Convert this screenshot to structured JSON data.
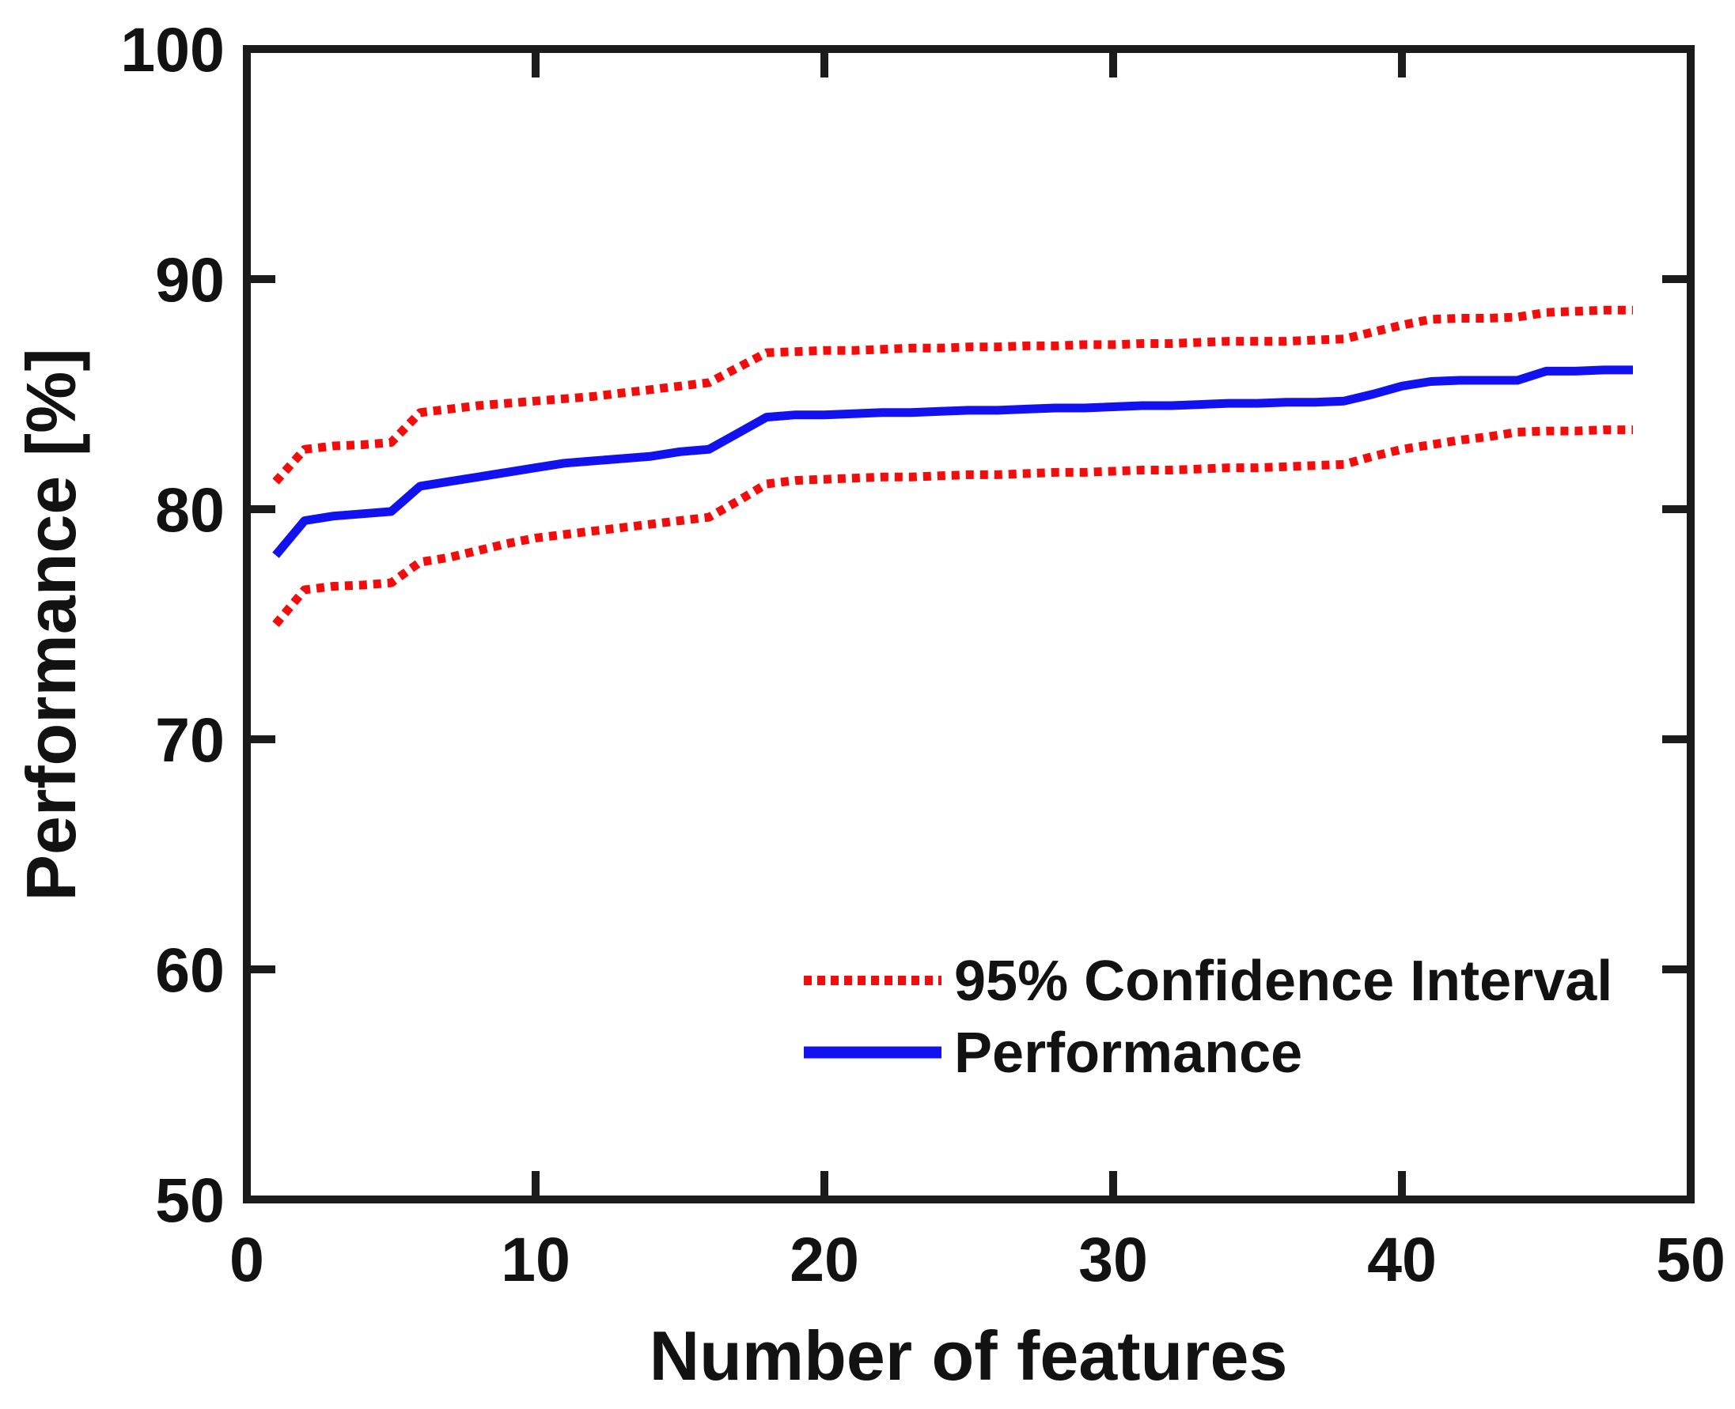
{
  "figure": {
    "background": "#ffffff",
    "axis_color": "#1b1b1b",
    "text_color": "#121212"
  },
  "chart_data": {
    "type": "line",
    "title": "",
    "xlabel": "Number of features",
    "ylabel": "Performance [%]",
    "xlim": [
      0,
      50
    ],
    "ylim": [
      50,
      100
    ],
    "x_ticks": [
      "0",
      "10",
      "20",
      "30",
      "40",
      "50"
    ],
    "x_tick_values": [
      0,
      10,
      20,
      30,
      40,
      50
    ],
    "y_ticks": [
      "50",
      "60",
      "70",
      "80",
      "90",
      "100"
    ],
    "y_tick_values": [
      50,
      60,
      70,
      80,
      90,
      100
    ],
    "grid": false,
    "box": true,
    "legend_position": "inside-lower-right",
    "x": [
      1,
      2,
      3,
      4,
      5,
      6,
      7,
      8,
      9,
      10,
      11,
      12,
      13,
      14,
      15,
      16,
      17,
      18,
      19,
      20,
      21,
      22,
      23,
      24,
      25,
      26,
      27,
      28,
      29,
      30,
      31,
      32,
      33,
      34,
      35,
      36,
      37,
      38,
      39,
      40,
      41,
      42,
      43,
      44,
      45,
      46,
      47,
      48
    ],
    "series": [
      {
        "name": "95% CI upper bound",
        "color": "#f20d0d",
        "style": "dotted",
        "values": [
          81.2,
          82.6,
          82.75,
          82.8,
          82.9,
          84.2,
          84.35,
          84.5,
          84.6,
          84.7,
          84.8,
          84.9,
          85.05,
          85.2,
          85.35,
          85.5,
          86.15,
          86.8,
          86.85,
          86.9,
          86.9,
          86.95,
          87.0,
          87.0,
          87.05,
          87.05,
          87.1,
          87.1,
          87.15,
          87.15,
          87.2,
          87.2,
          87.25,
          87.3,
          87.3,
          87.3,
          87.35,
          87.4,
          87.7,
          88.0,
          88.25,
          88.3,
          88.3,
          88.35,
          88.55,
          88.6,
          88.65,
          88.65
        ]
      },
      {
        "name": "95% CI lower bound",
        "color": "#f20d0d",
        "style": "dotted",
        "values": [
          75.0,
          76.5,
          76.65,
          76.7,
          76.8,
          77.7,
          77.9,
          78.2,
          78.5,
          78.75,
          78.9,
          79.05,
          79.2,
          79.35,
          79.5,
          79.65,
          80.35,
          81.1,
          81.25,
          81.3,
          81.35,
          81.4,
          81.4,
          81.45,
          81.5,
          81.5,
          81.55,
          81.6,
          81.6,
          81.65,
          81.7,
          81.7,
          81.75,
          81.8,
          81.8,
          81.85,
          81.9,
          81.95,
          82.3,
          82.6,
          82.8,
          83.0,
          83.15,
          83.35,
          83.4,
          83.4,
          83.45,
          83.45
        ]
      },
      {
        "name": "Performance",
        "color": "#1212f0",
        "style": "solid",
        "values": [
          78.0,
          79.5,
          79.7,
          79.8,
          79.9,
          81.0,
          81.2,
          81.4,
          81.6,
          81.8,
          82.0,
          82.1,
          82.2,
          82.3,
          82.5,
          82.6,
          83.3,
          84.0,
          84.1,
          84.1,
          84.15,
          84.2,
          84.2,
          84.25,
          84.3,
          84.3,
          84.35,
          84.4,
          84.4,
          84.45,
          84.5,
          84.5,
          84.55,
          84.6,
          84.6,
          84.65,
          84.65,
          84.7,
          85.0,
          85.35,
          85.55,
          85.6,
          85.6,
          85.6,
          86.0,
          86.0,
          86.05,
          86.05
        ]
      }
    ],
    "legend": {
      "items": [
        {
          "label": "95% Confidence Interval",
          "color": "#f20d0d",
          "style": "dotted"
        },
        {
          "label": "Performance",
          "color": "#1212f0",
          "style": "solid"
        }
      ]
    }
  }
}
